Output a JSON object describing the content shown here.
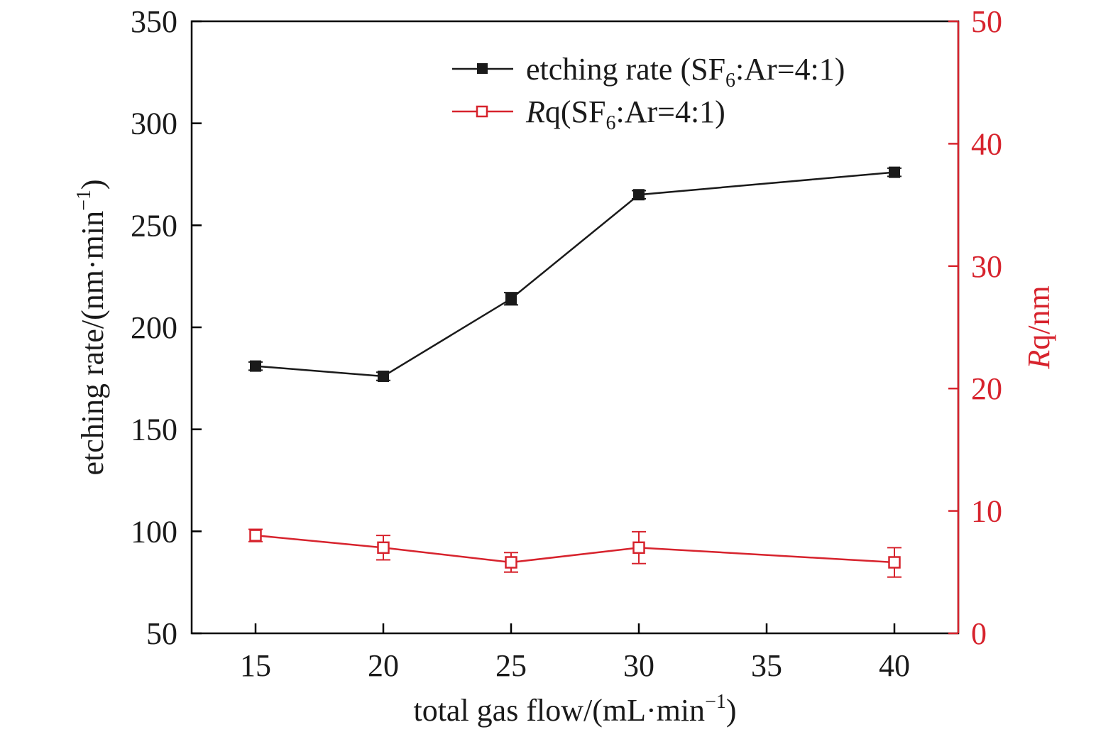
{
  "chart_data": {
    "type": "line",
    "x_axis": {
      "label_main": "total gas flow/(mL·min",
      "label_sup": "−1",
      "label_close": ")",
      "ticks": [
        15,
        20,
        25,
        30,
        35,
        40
      ],
      "range": [
        12.5,
        42.5
      ]
    },
    "y_axis_left": {
      "label_main": "etching rate/(nm·min",
      "label_sup": "−1",
      "label_close": ")",
      "ticks": [
        50,
        100,
        150,
        200,
        250,
        300,
        350
      ],
      "range": [
        50,
        350
      ],
      "color": "#000000"
    },
    "y_axis_right": {
      "label_italic": "R",
      "label_rest": "q/nm",
      "ticks": [
        0,
        10,
        20,
        30,
        40,
        50
      ],
      "range": [
        0,
        50
      ],
      "color": "#d7232d"
    },
    "legend": {
      "position": "top-right",
      "entries": [
        {
          "italic": "",
          "pre": "etching rate (SF",
          "sub": "6",
          "post": ":Ar=4:1)"
        },
        {
          "italic": "R",
          "pre": "q(SF",
          "sub": "6",
          "post": ":Ar=4:1)"
        }
      ]
    },
    "series": [
      {
        "name": "etching rate (SF6:Ar=4:1)",
        "axis": "left",
        "color": "#1a1a1a",
        "marker": "filled-square",
        "x": [
          15,
          20,
          25,
          30,
          40
        ],
        "y": [
          181,
          176,
          214,
          265,
          276
        ],
        "error": [
          2,
          2,
          3,
          2,
          2
        ]
      },
      {
        "name": "Rq(SF6:Ar=4:1)",
        "axis": "right",
        "color": "#d7232d",
        "marker": "open-square",
        "x": [
          15,
          20,
          25,
          30,
          40
        ],
        "y": [
          8.0,
          7.0,
          5.8,
          7.0,
          5.8
        ],
        "error": [
          0.5,
          1.0,
          0.8,
          1.3,
          1.2
        ]
      }
    ]
  }
}
